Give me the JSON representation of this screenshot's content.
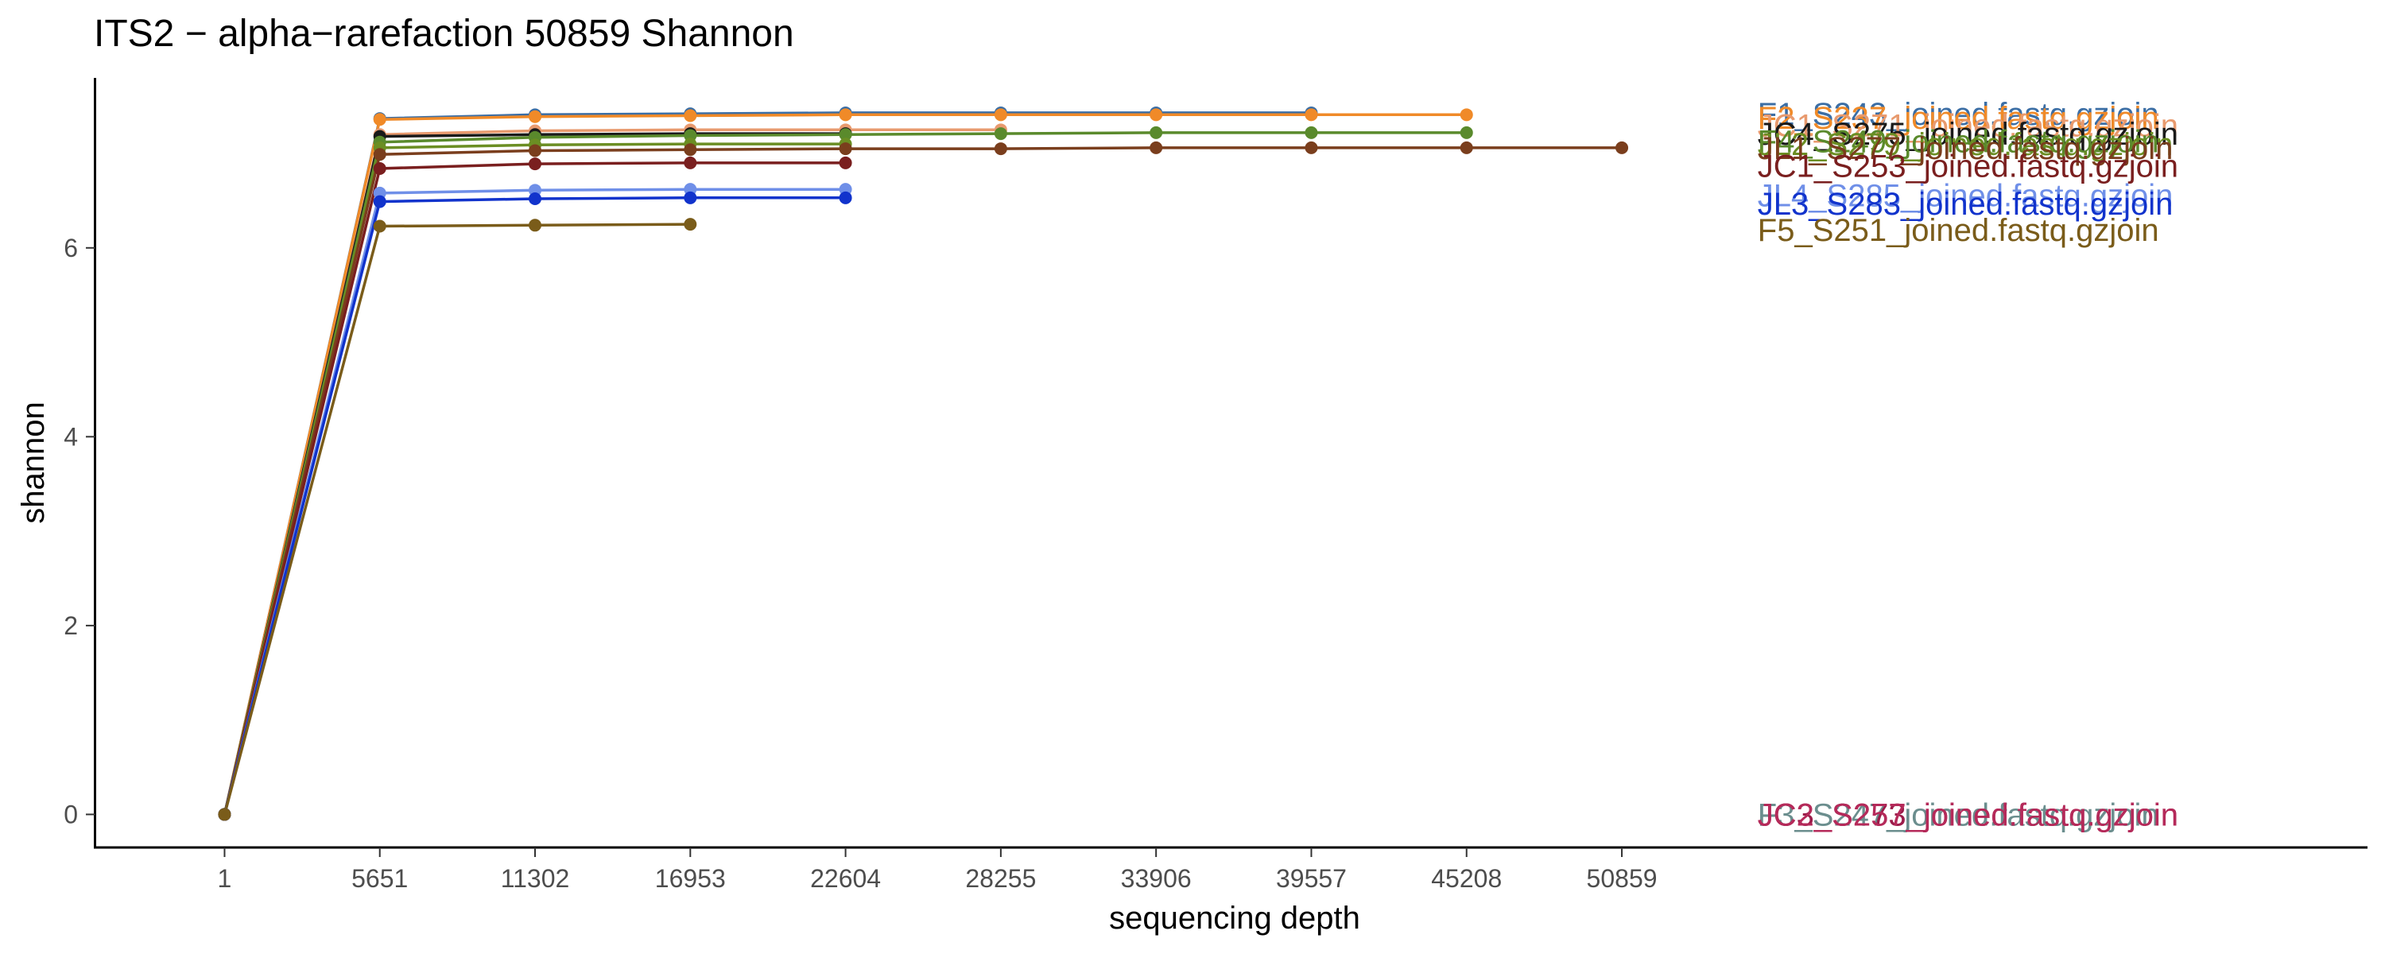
{
  "chart_data": {
    "type": "line",
    "title": "ITS2 − alpha−rarefaction 50859 Shannon",
    "xlabel": "sequencing depth",
    "ylabel": "shannon",
    "x_ticks": [
      1,
      5651,
      11302,
      16953,
      22604,
      28255,
      33906,
      39557,
      45208,
      50859
    ],
    "y_ticks": [
      0,
      2,
      4,
      6
    ],
    "xlim": [
      -4700,
      78000
    ],
    "ylim": [
      -0.35,
      7.8
    ],
    "grid": false,
    "legend": "direct labels at right",
    "series": [
      {
        "name": "F1_S243_joined.fastq.gzjoin",
        "color": "#3b6ea5",
        "x": [
          1,
          5651,
          11302,
          16953,
          22604,
          28255,
          33906,
          39557
        ],
        "y": [
          0,
          7.37,
          7.41,
          7.42,
          7.43,
          7.43,
          7.43,
          7.43
        ],
        "label_y": 7.42
      },
      {
        "name": "F2_S237_joined.fastq.gzjoin",
        "color": "#f08a28",
        "x": [
          1,
          5651,
          11302,
          16953,
          22604,
          28255,
          33906,
          39557,
          45208
        ],
        "y": [
          0,
          7.36,
          7.39,
          7.4,
          7.41,
          7.41,
          7.41,
          7.41,
          7.41
        ],
        "label_y": 7.38
      },
      {
        "name": "JC1_S271_joined.fastq.gzjoin",
        "color": "#e89a6e",
        "x": [
          1,
          5651,
          11302,
          16953,
          22604,
          28255
        ],
        "y": [
          0,
          7.2,
          7.24,
          7.25,
          7.25,
          7.25
        ],
        "label_y": 7.3
      },
      {
        "name": "JC4_S275_joined.fastq.gzjoin",
        "color": "#1a1a1a",
        "x": [
          1,
          5651,
          11302,
          16953,
          22604
        ],
        "y": [
          0,
          7.18,
          7.2,
          7.21,
          7.21
        ],
        "label_y": 7.21
      },
      {
        "name": "F4_S249_joined.fastq.gzjoin",
        "color": "#5a8a2c",
        "x": [
          1,
          5651,
          11302,
          16953,
          22604,
          28255,
          33906,
          39557,
          45208
        ],
        "y": [
          0,
          7.12,
          7.17,
          7.19,
          7.2,
          7.21,
          7.22,
          7.22,
          7.22
        ],
        "label_y": 7.13
      },
      {
        "name": "JL2_S279_joined.fastq.gzjoin",
        "color": "#6b8e23",
        "x": [
          1,
          5651,
          11302,
          16953,
          22604
        ],
        "y": [
          0,
          7.06,
          7.09,
          7.1,
          7.1
        ],
        "label_y": 7.1
      },
      {
        "name": "JL1_S277_joined.fastq.gzjoin",
        "color": "#7a3e1d",
        "x": [
          1,
          5651,
          11302,
          16953,
          22604,
          28255,
          33906,
          39557,
          45208,
          50859
        ],
        "y": [
          0,
          6.99,
          7.03,
          7.04,
          7.05,
          7.05,
          7.06,
          7.06,
          7.06,
          7.06
        ],
        "label_y": 7.06
      },
      {
        "name": "JC1_S253_joined.fastq.gzjoin",
        "color": "#7a1f1f",
        "x": [
          1,
          5651,
          11302,
          16953,
          22604
        ],
        "y": [
          0,
          6.84,
          6.89,
          6.9,
          6.9
        ],
        "label_y": 6.87
      },
      {
        "name": "JL4_S285_joined.fastq.gzjoin",
        "color": "#6f8fe8",
        "x": [
          1,
          5651,
          11302,
          16953,
          22604
        ],
        "y": [
          0,
          6.58,
          6.61,
          6.62,
          6.62
        ],
        "label_y": 6.56
      },
      {
        "name": "JL3_S283_joined.fastq.gzjoin",
        "color": "#1133cc",
        "x": [
          1,
          5651,
          11302,
          16953,
          22604
        ],
        "y": [
          0,
          6.49,
          6.52,
          6.53,
          6.53
        ],
        "label_y": 6.47
      },
      {
        "name": "F5_S251_joined.fastq.gzjoin",
        "color": "#7a5c1a",
        "x": [
          1,
          5651,
          11302,
          16953
        ],
        "y": [
          0,
          6.23,
          6.24,
          6.25
        ],
        "label_y": 6.19
      }
    ],
    "zero_labels": [
      {
        "name": "F3_S247_joined.fastq.gzjoin",
        "color": "#6b8e8e"
      },
      {
        "name": "JC3_S273_joined.fastq.gzjoin",
        "color": "#9b1c4a"
      },
      {
        "name": "JC2_S257_joined.fastq.gzjoin",
        "color": "#b52a5a"
      }
    ]
  }
}
